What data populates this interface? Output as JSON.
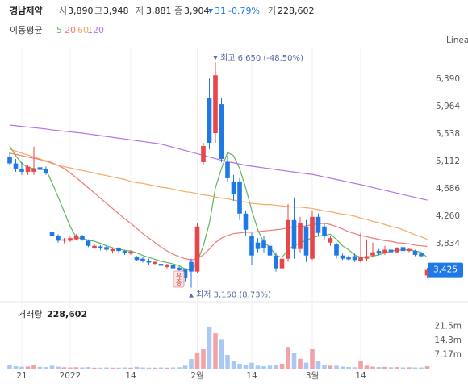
{
  "chart_data": {
    "type": "candlestick",
    "header": {
      "name": "경남제약",
      "items": [
        {
          "label": "시",
          "value": "3,890"
        },
        {
          "label": "고",
          "value": "3,948"
        },
        {
          "label": "저",
          "value": "3,881"
        },
        {
          "label": "종",
          "value": "3,904"
        }
      ],
      "change": {
        "value": "31",
        "pct": "-0.79%"
      },
      "volume": {
        "label": "거",
        "value": "228,602"
      }
    },
    "moving_averages_label": "이동평균",
    "scale_label": "Linear",
    "event_label": "유증",
    "high_annotation": "최고 6,650 (-48.50%)",
    "low_annotation": "최저 3,150 (8.73%)",
    "last_price_label": "3,425",
    "volume_title": "거래량",
    "volume_total": "228,602",
    "up_color": "#e8464a",
    "down_color": "#1e78e6",
    "up_volume_color": "#f2a3a6",
    "down_volume_color": "#a9c9f2",
    "categories": [
      null,
      null,
      "21",
      null,
      null,
      null,
      null,
      null,
      null,
      null,
      "2022",
      null,
      null,
      null,
      null,
      null,
      null,
      null,
      null,
      null,
      "14",
      null,
      null,
      null,
      null,
      null,
      null,
      null,
      null,
      null,
      null,
      "2월",
      null,
      null,
      null,
      null,
      null,
      null,
      null,
      null,
      "14",
      null,
      null,
      null,
      null,
      null,
      null,
      null,
      null,
      null,
      "3월",
      null,
      null,
      null,
      null,
      null,
      null,
      null,
      "14",
      null,
      null,
      null,
      null,
      null,
      null,
      null,
      null,
      null,
      null,
      null
    ],
    "open": [
      5180,
      5080,
      5000,
      4950,
      4950,
      5020,
      4990,
      4020,
      3950,
      3880,
      3880,
      3900,
      3960,
      3880,
      3770,
      3790,
      3780,
      3720,
      3760,
      3720,
      3680,
      3620,
      3600,
      3560,
      3520,
      3520,
      3470,
      3500,
      3460,
      3430,
      3550,
      3400,
      5100,
      6100,
      5550,
      6000,
      5100,
      4800,
      4800,
      4300,
      3950,
      3850,
      3880,
      3800,
      3650,
      3450,
      3600,
      4200,
      3750,
      4100,
      3600,
      4250,
      4100,
      3850,
      3820,
      3650,
      3620,
      3640,
      3560,
      3600,
      3650,
      3720,
      3690,
      3740,
      3700,
      3780,
      3720,
      3720,
      3680,
      3340
    ],
    "high": [
      5250,
      5150,
      5100,
      5050,
      5340,
      5050,
      5030,
      4050,
      3980,
      3920,
      3940,
      3980,
      3970,
      3900,
      3820,
      3810,
      3800,
      3760,
      3780,
      3740,
      3730,
      3640,
      3620,
      3600,
      3560,
      3540,
      3520,
      3510,
      3480,
      3450,
      3600,
      4150,
      5400,
      6400,
      6650,
      6100,
      5200,
      4900,
      4850,
      4350,
      4000,
      3920,
      3950,
      3900,
      3700,
      3700,
      4450,
      4550,
      4250,
      4200,
      4350,
      4300,
      4150,
      3950,
      3850,
      3680,
      3650,
      3680,
      4000,
      3900,
      3850,
      3750,
      3800,
      3770,
      3780,
      3800,
      3770,
      3740,
      3700,
      3460
    ],
    "low": [
      5050,
      4950,
      4900,
      4900,
      4900,
      4950,
      4900,
      3900,
      3850,
      3840,
      3860,
      3890,
      3880,
      3780,
      3750,
      3730,
      3720,
      3680,
      3700,
      3660,
      3660,
      3560,
      3540,
      3500,
      3500,
      3470,
      3450,
      3430,
      3400,
      3250,
      3150,
      3380,
      5050,
      5300,
      5400,
      5100,
      4800,
      4500,
      4200,
      3950,
      3500,
      3700,
      3700,
      3620,
      3400,
      3420,
      3550,
      3600,
      3700,
      3550,
      3580,
      3950,
      3900,
      3800,
      3600,
      3580,
      3570,
      3550,
      3540,
      3570,
      3620,
      3650,
      3660,
      3680,
      3680,
      3700,
      3700,
      3640,
      3620,
      3300
    ],
    "close": [
      5080,
      5000,
      4950,
      5030,
      5000,
      4980,
      4930,
      3950,
      3880,
      3900,
      3920,
      3960,
      3900,
      3800,
      3800,
      3760,
      3740,
      3750,
      3720,
      3690,
      3710,
      3580,
      3570,
      3540,
      3550,
      3490,
      3510,
      3450,
      3420,
      3300,
      3400,
      4100,
      5350,
      5400,
      6450,
      5150,
      4850,
      4600,
      4300,
      4050,
      3650,
      3750,
      3760,
      3650,
      3450,
      3600,
      4200,
      3750,
      4150,
      3650,
      4250,
      4000,
      3950,
      3920,
      3650,
      3600,
      3590,
      3580,
      3620,
      3640,
      3700,
      3680,
      3740,
      3700,
      3760,
      3720,
      3750,
      3660,
      3640,
      3425
    ],
    "volume": [
      1800000,
      1200000,
      1000000,
      1100000,
      2000000,
      900000,
      800000,
      1500000,
      1000000,
      700000,
      600000,
      700000,
      600000,
      800000,
      500000,
      500000,
      600000,
      500000,
      500000,
      600000,
      500000,
      900000,
      600000,
      500000,
      500000,
      600000,
      500000,
      600000,
      700000,
      1500000,
      4900000,
      8200000,
      10000000,
      21300000,
      18000000,
      15000000,
      7000000,
      4000000,
      2500000,
      2000000,
      3000000,
      1500000,
      1200000,
      1500000,
      2000000,
      2500000,
      11000000,
      7800000,
      5000000,
      3000000,
      10000000,
      4000000,
      2000000,
      1500000,
      1500000,
      1000000,
      800000,
      700000,
      3700000,
      1500000,
      1000000,
      800000,
      900000,
      700000,
      800000,
      600000,
      700000,
      600000,
      600000,
      1200000
    ],
    "moving_averages": [
      {
        "name": "5",
        "color": "#5cb85c",
        "values": [
          5350,
          5200,
          5080,
          5020,
          5000,
          4990,
          4980,
          4780,
          4560,
          4330,
          4100,
          3930,
          3910,
          3890,
          3870,
          3840,
          3800,
          3770,
          3750,
          3730,
          3720,
          3690,
          3650,
          3620,
          3590,
          3560,
          3540,
          3520,
          3490,
          3440,
          3420,
          3550,
          3800,
          4150,
          4700,
          5000,
          5250,
          5200,
          5000,
          4700,
          4350,
          4050,
          3850,
          3780,
          3650,
          3620,
          3740,
          3800,
          3850,
          3880,
          3930,
          3950,
          3960,
          3980,
          3900,
          3800,
          3740,
          3660,
          3620,
          3620,
          3640,
          3660,
          3690,
          3720,
          3730,
          3740,
          3740,
          3720,
          3700,
          3620
        ]
      },
      {
        "name": "20",
        "color": "#f07a7a",
        "values": [
          5240,
          5220,
          5200,
          5180,
          5160,
          5140,
          5120,
          5090,
          5050,
          5000,
          4930,
          4860,
          4780,
          4700,
          4620,
          4540,
          4460,
          4380,
          4300,
          4220,
          4150,
          4070,
          3990,
          3920,
          3850,
          3780,
          3720,
          3670,
          3630,
          3600,
          3580,
          3600,
          3660,
          3750,
          3850,
          3920,
          3960,
          3990,
          4000,
          4010,
          4010,
          4020,
          4030,
          4040,
          4050,
          4060,
          4080,
          4090,
          4100,
          4110,
          4130,
          4140,
          4150,
          4130,
          4100,
          4060,
          4020,
          3990,
          3960,
          3940,
          3920,
          3900,
          3880,
          3870,
          3850,
          3840,
          3830,
          3810,
          3800,
          3790
        ]
      },
      {
        "name": "60",
        "color": "#f2aa66",
        "values": [
          5300,
          5270,
          5240,
          5210,
          5180,
          5150,
          5110,
          5080,
          5050,
          5030,
          5010,
          4990,
          4970,
          4950,
          4930,
          4910,
          4890,
          4870,
          4850,
          4830,
          4800,
          4780,
          4770,
          4750,
          4730,
          4710,
          4700,
          4680,
          4660,
          4640,
          4630,
          4610,
          4590,
          4580,
          4560,
          4540,
          4530,
          4510,
          4490,
          4480,
          4460,
          4450,
          4440,
          4440,
          4430,
          4420,
          4410,
          4400,
          4400,
          4390,
          4380,
          4360,
          4340,
          4330,
          4310,
          4290,
          4280,
          4260,
          4230,
          4210,
          4180,
          4160,
          4130,
          4100,
          4080,
          4050,
          4010,
          3970,
          3940,
          3900
        ]
      },
      {
        "name": "120",
        "color": "#b373e6",
        "values": [
          5675,
          5665,
          5655,
          5645,
          5635,
          5625,
          5615,
          5600,
          5590,
          5580,
          5570,
          5560,
          5550,
          5537,
          5524,
          5511,
          5498,
          5485,
          5472,
          5459,
          5446,
          5433,
          5420,
          5407,
          5394,
          5380,
          5355,
          5330,
          5305,
          5280,
          5255,
          5230,
          5205,
          5180,
          5155,
          5130,
          5105,
          5090,
          5070,
          5050,
          5037,
          5024,
          5011,
          4998,
          4985,
          4972,
          4959,
          4946,
          4933,
          4920,
          4910,
          4890,
          4870,
          4850,
          4830,
          4810,
          4790,
          4770,
          4750,
          4728,
          4706,
          4684,
          4662,
          4640,
          4618,
          4596,
          4574,
          4552,
          4530,
          4510
        ]
      }
    ],
    "ylim": [
      2982,
      6891
    ],
    "yticks": [
      {
        "value": 3834,
        "label": "3,834"
      },
      {
        "value": 4260,
        "label": "4,260"
      },
      {
        "value": 4686,
        "label": "4,686"
      },
      {
        "value": 5112,
        "label": "5,112"
      },
      {
        "value": 5538,
        "label": "5,538"
      },
      {
        "value": 5964,
        "label": "5,964"
      },
      {
        "value": 6390,
        "label": "6,390"
      }
    ],
    "volume_ylim": [
      0,
      32400000
    ],
    "volume_yticks": [
      {
        "value": 7170000,
        "label": "7.17m"
      },
      {
        "value": 14300000,
        "label": "14.3m"
      },
      {
        "value": 21500000,
        "label": "21.5m"
      }
    ]
  }
}
